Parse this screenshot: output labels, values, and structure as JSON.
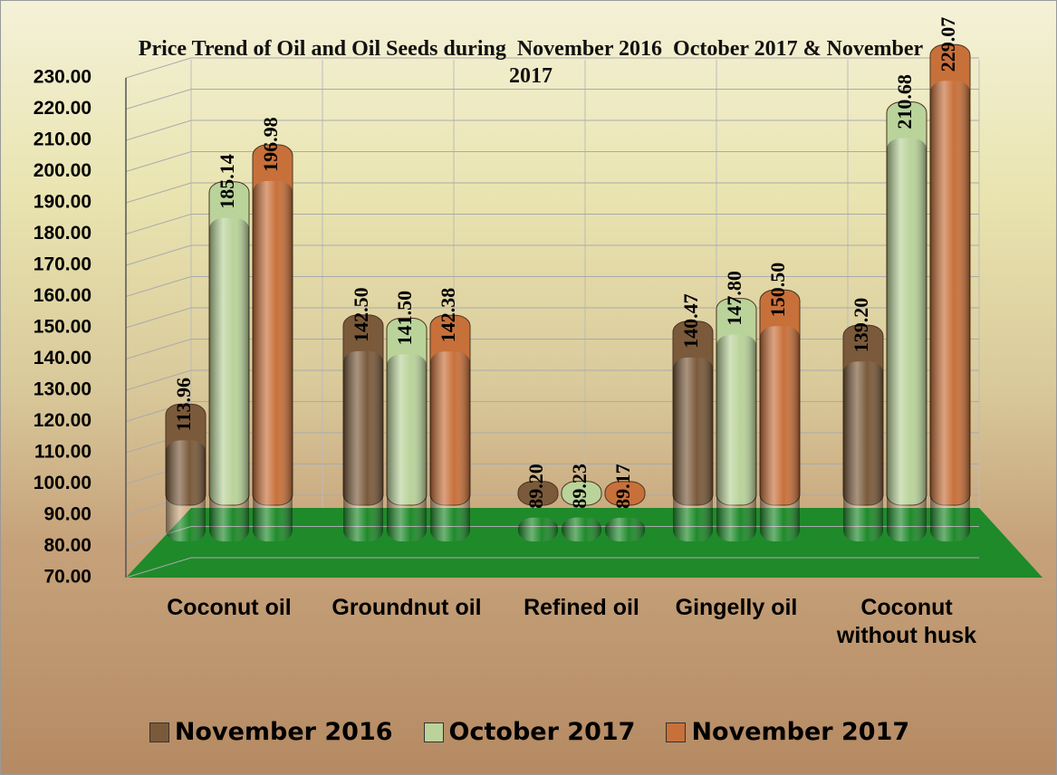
{
  "chart_data": {
    "type": "bar",
    "title": "Price Trend of Oil and Oil Seeds during  November 2016  October 2017 & November 2017",
    "categories": [
      "Coconut oil",
      "Groundnut oil",
      "Refined oil",
      "Gingelly oil",
      "Coconut without husk"
    ],
    "series": [
      {
        "name": "November 2016",
        "color": "#7a5a3a",
        "values": [
          113.96,
          142.5,
          89.2,
          140.47,
          139.2
        ],
        "value_labels": [
          "113.96",
          "142.50",
          "89.20",
          "140.47",
          "139.20"
        ]
      },
      {
        "name": "October 2017",
        "color": "#b9d39a",
        "values": [
          185.14,
          141.5,
          89.23,
          147.8,
          210.68
        ],
        "value_labels": [
          "185.14",
          "141.50",
          "89.23",
          "147.80",
          "210.68"
        ]
      },
      {
        "name": "November 2017",
        "color": "#c8703a",
        "values": [
          196.98,
          142.38,
          89.17,
          150.5,
          229.07
        ],
        "value_labels": [
          "196.98",
          "142.38",
          "89.17",
          "150.50",
          "229.07"
        ]
      }
    ],
    "ylim": [
      70,
      230
    ],
    "yticks": [
      {
        "value": 70,
        "label": "70.00"
      },
      {
        "value": 80,
        "label": "80.00"
      },
      {
        "value": 90,
        "label": "90.00"
      },
      {
        "value": 100,
        "label": "100.00"
      },
      {
        "value": 110,
        "label": "110.00"
      },
      {
        "value": 120,
        "label": "120.00"
      },
      {
        "value": 130,
        "label": "130.00"
      },
      {
        "value": 140,
        "label": "140.00"
      },
      {
        "value": 150,
        "label": "150.00"
      },
      {
        "value": 160,
        "label": "160.00"
      },
      {
        "value": 170,
        "label": "170.00"
      },
      {
        "value": 180,
        "label": "180.00"
      },
      {
        "value": 190,
        "label": "190.00"
      },
      {
        "value": 200,
        "label": "200.00"
      },
      {
        "value": 210,
        "label": "210.00"
      },
      {
        "value": 220,
        "label": "220.00"
      },
      {
        "value": 230,
        "label": "230.00"
      }
    ],
    "grid": true,
    "legend": "bottom"
  }
}
